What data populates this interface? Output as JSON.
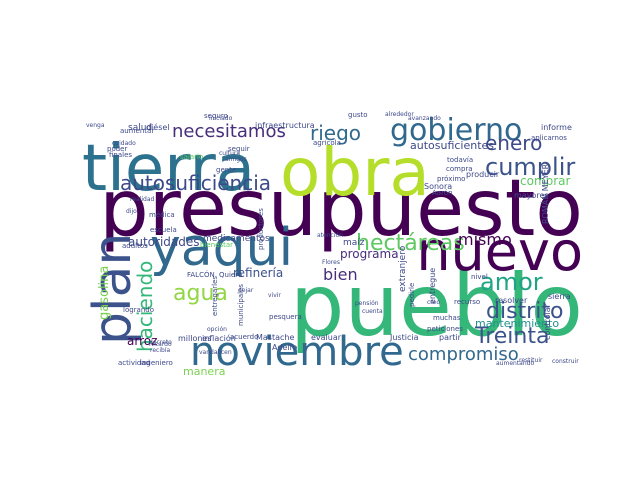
{
  "words": [
    {
      "text": "presupuesto",
      "color": "#440154"
    },
    {
      "text": "pueblo",
      "color": "#35b779"
    },
    {
      "text": "tierra",
      "color": "#2c728e"
    },
    {
      "text": "obra",
      "color": "#b5de2b"
    },
    {
      "text": "nuevo",
      "color": "#440154"
    },
    {
      "text": "plan",
      "color": "#3b528b"
    },
    {
      "text": "yaqui",
      "color": "#31688e"
    },
    {
      "text": "noviembre",
      "color": "#31688e"
    },
    {
      "text": "gobierno",
      "color": "#31688e"
    },
    {
      "text": "autosuficiencia",
      "color": "#3e4989"
    },
    {
      "text": "necesitamos",
      "color": "#472d7b"
    },
    {
      "text": "agua",
      "color": "#90d743"
    },
    {
      "text": "amor",
      "color": "#20a486"
    },
    {
      "text": "riego",
      "color": "#31688e"
    },
    {
      "text": "cumplir",
      "color": "#3b528b"
    },
    {
      "text": "enero",
      "color": "#3e4989"
    },
    {
      "text": "hectáreas",
      "color": "#5ec962"
    },
    {
      "text": "distrito",
      "color": "#3b528b"
    },
    {
      "text": "Treinta",
      "color": "#3b528b"
    },
    {
      "text": "compromiso",
      "color": "#31688e"
    },
    {
      "text": "haciendo",
      "color": "#35b779"
    },
    {
      "text": "bien",
      "color": "#472d7b"
    },
    {
      "text": "mismo",
      "color": "#440154"
    },
    {
      "text": "programa",
      "color": "#472d7b"
    },
    {
      "text": "autoridades",
      "color": "#3e4989"
    },
    {
      "text": "refinería",
      "color": "#3b528b"
    },
    {
      "text": "mantenimiento",
      "color": "#21918c"
    },
    {
      "text": "comprar",
      "color": "#5ec962"
    },
    {
      "text": "autosuficientes",
      "color": "#3e4989"
    },
    {
      "text": "gasolina",
      "color": "#7ad151"
    },
    {
      "text": "arroz",
      "color": "#440154"
    },
    {
      "text": "manera",
      "color": "#7ad151"
    },
    {
      "text": "medicamentos",
      "color": "#3e4989"
    },
    {
      "text": "salud",
      "color": "#3e4989"
    },
    {
      "text": "diésel",
      "color": "#3e4989"
    },
    {
      "text": "infraestructura",
      "color": "#3e4989"
    },
    {
      "text": "Sonora",
      "color": "#3e4989"
    },
    {
      "text": "informe",
      "color": "#3e4989"
    },
    {
      "text": "aplicarnos",
      "color": "#3e4989"
    },
    {
      "text": "producir",
      "color": "#3e4989"
    },
    {
      "text": "mayores",
      "color": "#3e4989"
    },
    {
      "text": "seguir",
      "color": "#3e4989"
    },
    {
      "text": "médica",
      "color": "#3e4989"
    },
    {
      "text": "escuela",
      "color": "#3e4989"
    },
    {
      "text": "adultos",
      "color": "#3e4989"
    },
    {
      "text": "FALCÓN",
      "color": "#3e4989"
    },
    {
      "text": "Quiero",
      "color": "#3e4989"
    },
    {
      "text": "entregarles",
      "color": "#3e4989"
    },
    {
      "text": "municipales",
      "color": "#3e4989"
    },
    {
      "text": "productores",
      "color": "#3e4989"
    },
    {
      "text": "Mastache",
      "color": "#3e4989"
    },
    {
      "text": "evaluar",
      "color": "#3e4989"
    },
    {
      "text": "Justicia",
      "color": "#3e4989"
    },
    {
      "text": "partir",
      "color": "#3e4989"
    },
    {
      "text": "resolver",
      "color": "#3e4989"
    },
    {
      "text": "sierra",
      "color": "#3e4989"
    },
    {
      "text": "controlar",
      "color": "#3e4989"
    },
    {
      "text": "actividad",
      "color": "#3e4989"
    },
    {
      "text": "ingeniero",
      "color": "#3e4989"
    },
    {
      "text": "millones",
      "color": "#3e4989"
    },
    {
      "text": "inflación",
      "color": "#3e4989"
    },
    {
      "text": "acuerdo",
      "color": "#3e4989"
    },
    {
      "text": "Adelfo",
      "color": "#3e4989"
    },
    {
      "text": "pesquera",
      "color": "#3e4989"
    },
    {
      "text": "logrando",
      "color": "#3e4989"
    },
    {
      "text": "aumentar",
      "color": "#3e4989"
    },
    {
      "text": "finales",
      "color": "#3e4989"
    },
    {
      "text": "seguro",
      "color": "#3e4989"
    },
    {
      "text": "salario",
      "color": "#5ec962"
    },
    {
      "text": "bienestar",
      "color": "#5ec962"
    },
    {
      "text": "gente",
      "color": "#3e4989"
    },
    {
      "text": "cultura",
      "color": "#3e4989"
    },
    {
      "text": "amigos",
      "color": "#3e4989"
    },
    {
      "text": "agrícola",
      "color": "#3e4989"
    },
    {
      "text": "gusto",
      "color": "#3e4989"
    },
    {
      "text": "próximo",
      "color": "#3e4989"
    },
    {
      "text": "todavía",
      "color": "#3e4989"
    },
    {
      "text": "compra",
      "color": "#3e4989"
    },
    {
      "text": "nivel",
      "color": "#3e4989"
    },
    {
      "text": "recurso",
      "color": "#3e4989"
    },
    {
      "text": "pedirle",
      "color": "#3e4989"
    },
    {
      "text": "extranjero",
      "color": "#3e4989"
    },
    {
      "text": "entregue",
      "color": "#3e4989"
    },
    {
      "text": "peticiones",
      "color": "#3e4989"
    },
    {
      "text": "muchas",
      "color": "#3e4989"
    },
    {
      "text": "Aarón",
      "color": "#3e4989"
    },
    {
      "text": "maíz",
      "color": "#3e4989"
    },
    {
      "text": "ROMÁN MEYER",
      "color": "#3e4989"
    },
    {
      "text": "Flores",
      "color": "#3e4989"
    },
    {
      "text": "atención",
      "color": "#3e4989"
    },
    {
      "text": "poder",
      "color": "#3e4989"
    },
    {
      "text": "cuidado",
      "color": "#3e4989"
    },
    {
      "text": "dijo",
      "color": "#3e4989"
    },
    {
      "text": "decreto",
      "color": "#3e4989"
    },
    {
      "text": "recibía",
      "color": "#3e4989"
    },
    {
      "text": "Ricardo",
      "color": "#3e4989"
    },
    {
      "text": "vandalicen",
      "color": "#3e4989"
    },
    {
      "text": "opción",
      "color": "#3e4989"
    },
    {
      "text": "avanzando",
      "color": "#3e4989"
    },
    {
      "text": "dejar",
      "color": "#3e4989"
    },
    {
      "text": "vivir",
      "color": "#3e4989"
    },
    {
      "text": "pensión",
      "color": "#3e4989"
    },
    {
      "text": "cuenta",
      "color": "#3e4989"
    },
    {
      "text": "creo",
      "color": "#3e4989"
    },
    {
      "text": "realidad",
      "color": "#3e4989"
    },
    {
      "text": "iniciado",
      "color": "#3e4989"
    },
    {
      "text": "alrededor",
      "color": "#3e4989"
    },
    {
      "text": "venga",
      "color": "#3e4989"
    },
    {
      "text": "aumentando",
      "color": "#3e4989"
    },
    {
      "text": "restituir",
      "color": "#3e4989"
    },
    {
      "text": "construir",
      "color": "#3e4989"
    }
  ]
}
